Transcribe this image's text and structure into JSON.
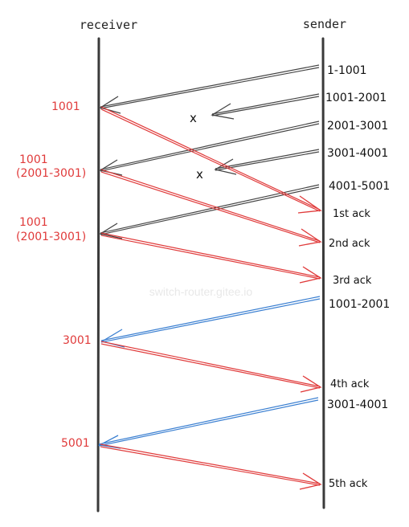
{
  "columns": {
    "receiver": "receiver",
    "sender": "sender"
  },
  "segments": [
    {
      "label": "1-1001",
      "color": "#444444",
      "lost": false
    },
    {
      "label": "1001-2001",
      "color": "#444444",
      "lost": true
    },
    {
      "label": "2001-3001",
      "color": "#444444",
      "lost": false
    },
    {
      "label": "3001-4001",
      "color": "#444444",
      "lost": true
    },
    {
      "label": "4001-5001",
      "color": "#444444",
      "lost": false
    },
    {
      "label": "1001-2001",
      "color": "#3a7fd1",
      "lost": false
    },
    {
      "label": "3001-4001",
      "color": "#3a7fd1",
      "lost": false
    }
  ],
  "acks": [
    {
      "receiver_label": "1001",
      "receiver_sub": "",
      "sender_label": "1st ack",
      "color": "#e03a3a"
    },
    {
      "receiver_label": "1001",
      "receiver_sub": "(2001-3001)",
      "sender_label": "2nd ack",
      "color": "#e03a3a"
    },
    {
      "receiver_label": "1001",
      "receiver_sub": "(2001-3001)",
      "sender_label": "3rd ack",
      "color": "#e03a3a"
    },
    {
      "receiver_label": "3001",
      "receiver_sub": "",
      "sender_label": "4th ack",
      "color": "#e03a3a"
    },
    {
      "receiver_label": "5001",
      "receiver_sub": "",
      "sender_label": "5th ack",
      "color": "#e03a3a"
    }
  ],
  "lost_marker": "x",
  "watermark": "switch-router.gitee.io"
}
